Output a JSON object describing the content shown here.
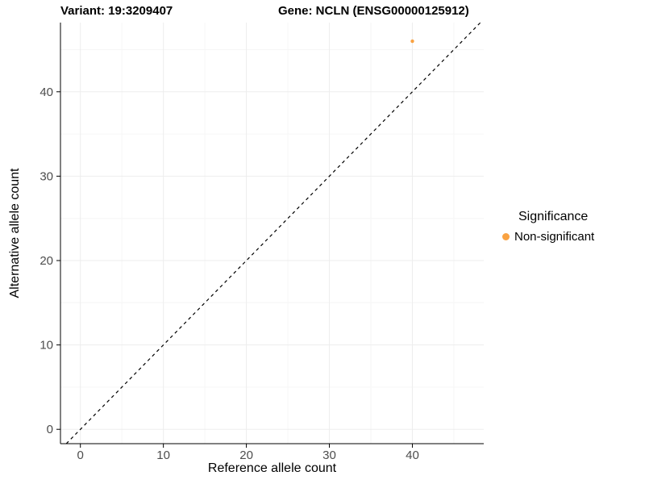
{
  "header": {
    "variant_title": "Variant: 19:3209407",
    "gene_title": "Gene: NCLN (ENSG00000125912)"
  },
  "legend": {
    "title": "Significance",
    "items": [
      {
        "label": "Non-significant",
        "color": "#F9A242"
      }
    ]
  },
  "chart_data": {
    "type": "scatter",
    "title": "Variant: 19:3209407 — Gene: NCLN (ENSG00000125912)",
    "xlabel": "Reference allele count",
    "ylabel": "Alternative allele count",
    "xlim": [
      -2.4,
      48.6
    ],
    "ylim": [
      -1.7,
      48.2
    ],
    "xticks": [
      0,
      10,
      20,
      30,
      40
    ],
    "yticks": [
      0,
      10,
      20,
      30,
      40
    ],
    "minor_xticks": [
      5,
      15,
      25,
      35,
      45
    ],
    "minor_yticks": [
      5,
      15,
      25,
      35,
      45
    ],
    "grid": true,
    "legend_position": "right",
    "identity_line": {
      "style": "dashed",
      "color": "#000000",
      "equation": "y = x"
    },
    "series": [
      {
        "name": "Non-significant",
        "color": "#F9A242",
        "point_radius": 2.2,
        "points": [
          {
            "x": 40,
            "y": 46
          }
        ]
      }
    ]
  },
  "colors": {
    "axis": "#000000",
    "tick_label": "#4D4D4D",
    "grid_major": "#EDEDED",
    "grid_minor": "#F6F6F6",
    "background": "#FFFFFF"
  }
}
